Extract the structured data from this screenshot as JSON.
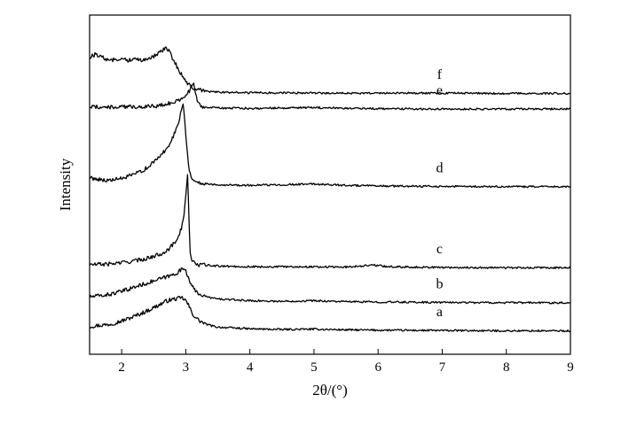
{
  "chart_data": {
    "type": "line",
    "title": "",
    "xlabel": "2θ/(°)",
    "ylabel": "Intensity",
    "xlim": [
      1.5,
      9
    ],
    "ylim": [
      0,
      1
    ],
    "x_ticks": [
      "2",
      "3",
      "4",
      "5",
      "6",
      "7",
      "8",
      "9"
    ],
    "y_ticks": [],
    "grid": false,
    "legend": "none (traces labeled inline)",
    "series": [
      {
        "name": "a",
        "label_x": 7.0,
        "points": [
          [
            1.5,
            0.082
          ],
          [
            1.8,
            0.088
          ],
          [
            2.0,
            0.098
          ],
          [
            2.2,
            0.112
          ],
          [
            2.4,
            0.128
          ],
          [
            2.6,
            0.147
          ],
          [
            2.7,
            0.157
          ],
          [
            2.8,
            0.162
          ],
          [
            2.9,
            0.165
          ],
          [
            2.95,
            0.166
          ],
          [
            3.0,
            0.158
          ],
          [
            3.05,
            0.142
          ],
          [
            3.1,
            0.12
          ],
          [
            3.2,
            0.1
          ],
          [
            3.3,
            0.09
          ],
          [
            3.4,
            0.084
          ],
          [
            3.5,
            0.08
          ],
          [
            4.0,
            0.075
          ],
          [
            4.5,
            0.073
          ],
          [
            5.0,
            0.074
          ],
          [
            5.5,
            0.072
          ],
          [
            6.0,
            0.071
          ],
          [
            7.0,
            0.07
          ],
          [
            8.0,
            0.069
          ],
          [
            9.0,
            0.069
          ]
        ]
      },
      {
        "name": "b",
        "label_x": 7.0,
        "points": [
          [
            1.5,
            0.169
          ],
          [
            1.8,
            0.176
          ],
          [
            2.0,
            0.185
          ],
          [
            2.2,
            0.198
          ],
          [
            2.4,
            0.21
          ],
          [
            2.6,
            0.222
          ],
          [
            2.8,
            0.234
          ],
          [
            2.9,
            0.245
          ],
          [
            2.97,
            0.254
          ],
          [
            3.0,
            0.248
          ],
          [
            3.03,
            0.232
          ],
          [
            3.1,
            0.2
          ],
          [
            3.15,
            0.185
          ],
          [
            3.3,
            0.17
          ],
          [
            3.5,
            0.163
          ],
          [
            4.0,
            0.158
          ],
          [
            4.5,
            0.156
          ],
          [
            5.0,
            0.158
          ],
          [
            5.5,
            0.155
          ],
          [
            6.0,
            0.154
          ],
          [
            7.0,
            0.153
          ],
          [
            8.0,
            0.152
          ],
          [
            9.0,
            0.152
          ]
        ]
      },
      {
        "name": "c",
        "label_x": 7.0,
        "points": [
          [
            1.5,
            0.264
          ],
          [
            1.8,
            0.266
          ],
          [
            2.0,
            0.27
          ],
          [
            2.2,
            0.275
          ],
          [
            2.4,
            0.283
          ],
          [
            2.6,
            0.295
          ],
          [
            2.75,
            0.312
          ],
          [
            2.85,
            0.335
          ],
          [
            2.93,
            0.37
          ],
          [
            2.98,
            0.42
          ],
          [
            3.01,
            0.49
          ],
          [
            3.03,
            0.53
          ],
          [
            3.05,
            0.4
          ],
          [
            3.07,
            0.3
          ],
          [
            3.1,
            0.272
          ],
          [
            3.2,
            0.264
          ],
          [
            3.5,
            0.26
          ],
          [
            4.0,
            0.258
          ],
          [
            5.0,
            0.258
          ],
          [
            5.5,
            0.257
          ],
          [
            5.9,
            0.263
          ],
          [
            6.2,
            0.258
          ],
          [
            7.0,
            0.256
          ],
          [
            8.0,
            0.255
          ],
          [
            9.0,
            0.255
          ]
        ]
      },
      {
        "name": "d",
        "label_x": 7.0,
        "points": [
          [
            1.5,
            0.52
          ],
          [
            1.8,
            0.512
          ],
          [
            2.0,
            0.518
          ],
          [
            2.2,
            0.53
          ],
          [
            2.4,
            0.55
          ],
          [
            2.55,
            0.575
          ],
          [
            2.7,
            0.605
          ],
          [
            2.8,
            0.64
          ],
          [
            2.88,
            0.68
          ],
          [
            2.93,
            0.72
          ],
          [
            2.96,
            0.74
          ],
          [
            2.98,
            0.7
          ],
          [
            3.01,
            0.62
          ],
          [
            3.05,
            0.55
          ],
          [
            3.1,
            0.515
          ],
          [
            3.2,
            0.505
          ],
          [
            3.5,
            0.5
          ],
          [
            4.0,
            0.498
          ],
          [
            5.0,
            0.502
          ],
          [
            5.5,
            0.498
          ],
          [
            6.0,
            0.496
          ],
          [
            7.0,
            0.495
          ],
          [
            8.0,
            0.494
          ],
          [
            9.0,
            0.494
          ]
        ]
      },
      {
        "name": "e",
        "label_x": 7.0,
        "points": [
          [
            1.5,
            0.73
          ],
          [
            1.8,
            0.728
          ],
          [
            2.0,
            0.729
          ],
          [
            2.3,
            0.73
          ],
          [
            2.6,
            0.733
          ],
          [
            2.8,
            0.742
          ],
          [
            2.95,
            0.755
          ],
          [
            3.05,
            0.775
          ],
          [
            3.12,
            0.8
          ],
          [
            3.15,
            0.772
          ],
          [
            3.18,
            0.745
          ],
          [
            3.25,
            0.73
          ],
          [
            3.5,
            0.726
          ],
          [
            4.0,
            0.725
          ],
          [
            5.0,
            0.727
          ],
          [
            6.0,
            0.724
          ],
          [
            7.0,
            0.723
          ],
          [
            8.0,
            0.723
          ],
          [
            9.0,
            0.723
          ]
        ]
      },
      {
        "name": "f",
        "label_x": 7.0,
        "points": [
          [
            1.5,
            0.875
          ],
          [
            1.6,
            0.885
          ],
          [
            1.75,
            0.87
          ],
          [
            1.9,
            0.868
          ],
          [
            2.0,
            0.874
          ],
          [
            2.1,
            0.866
          ],
          [
            2.2,
            0.87
          ],
          [
            2.3,
            0.868
          ],
          [
            2.4,
            0.872
          ],
          [
            2.5,
            0.878
          ],
          [
            2.6,
            0.89
          ],
          [
            2.68,
            0.902
          ],
          [
            2.72,
            0.9
          ],
          [
            2.8,
            0.87
          ],
          [
            2.9,
            0.835
          ],
          [
            3.0,
            0.805
          ],
          [
            3.1,
            0.785
          ],
          [
            3.3,
            0.775
          ],
          [
            3.6,
            0.772
          ],
          [
            4.0,
            0.771
          ],
          [
            5.0,
            0.77
          ],
          [
            6.0,
            0.77
          ],
          [
            7.0,
            0.77
          ],
          [
            8.0,
            0.769
          ],
          [
            9.0,
            0.769
          ]
        ]
      }
    ]
  }
}
